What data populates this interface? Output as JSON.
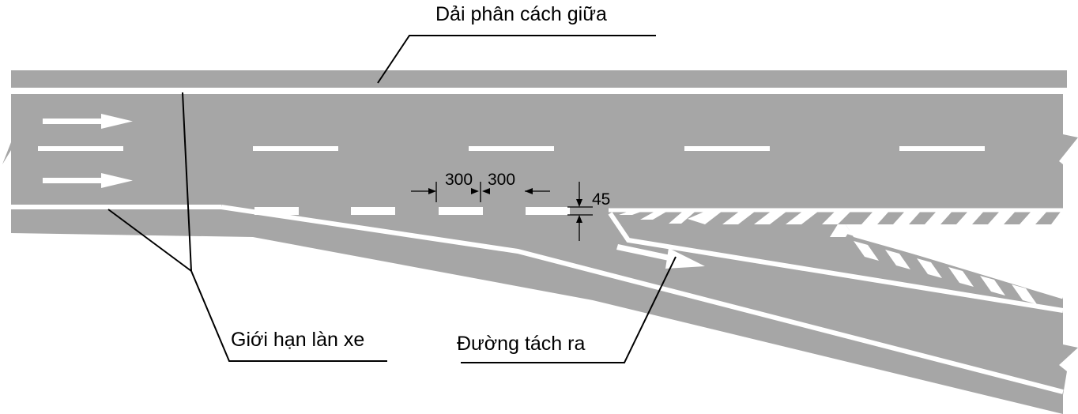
{
  "labels": {
    "median": "Dải phân cách giữa",
    "lane_limit": "Giới hạn làn xe",
    "diverge_road": "Đường tách ra"
  },
  "dimensions": {
    "dash_length": "300",
    "gap_length": "300",
    "line_width": "45"
  },
  "colors": {
    "road": "#a6a6a6",
    "marking": "#ffffff",
    "leader": "#000000",
    "background": "#ffffff"
  },
  "markings": {
    "through_arrows": 2,
    "ramp_arrows": 1
  }
}
